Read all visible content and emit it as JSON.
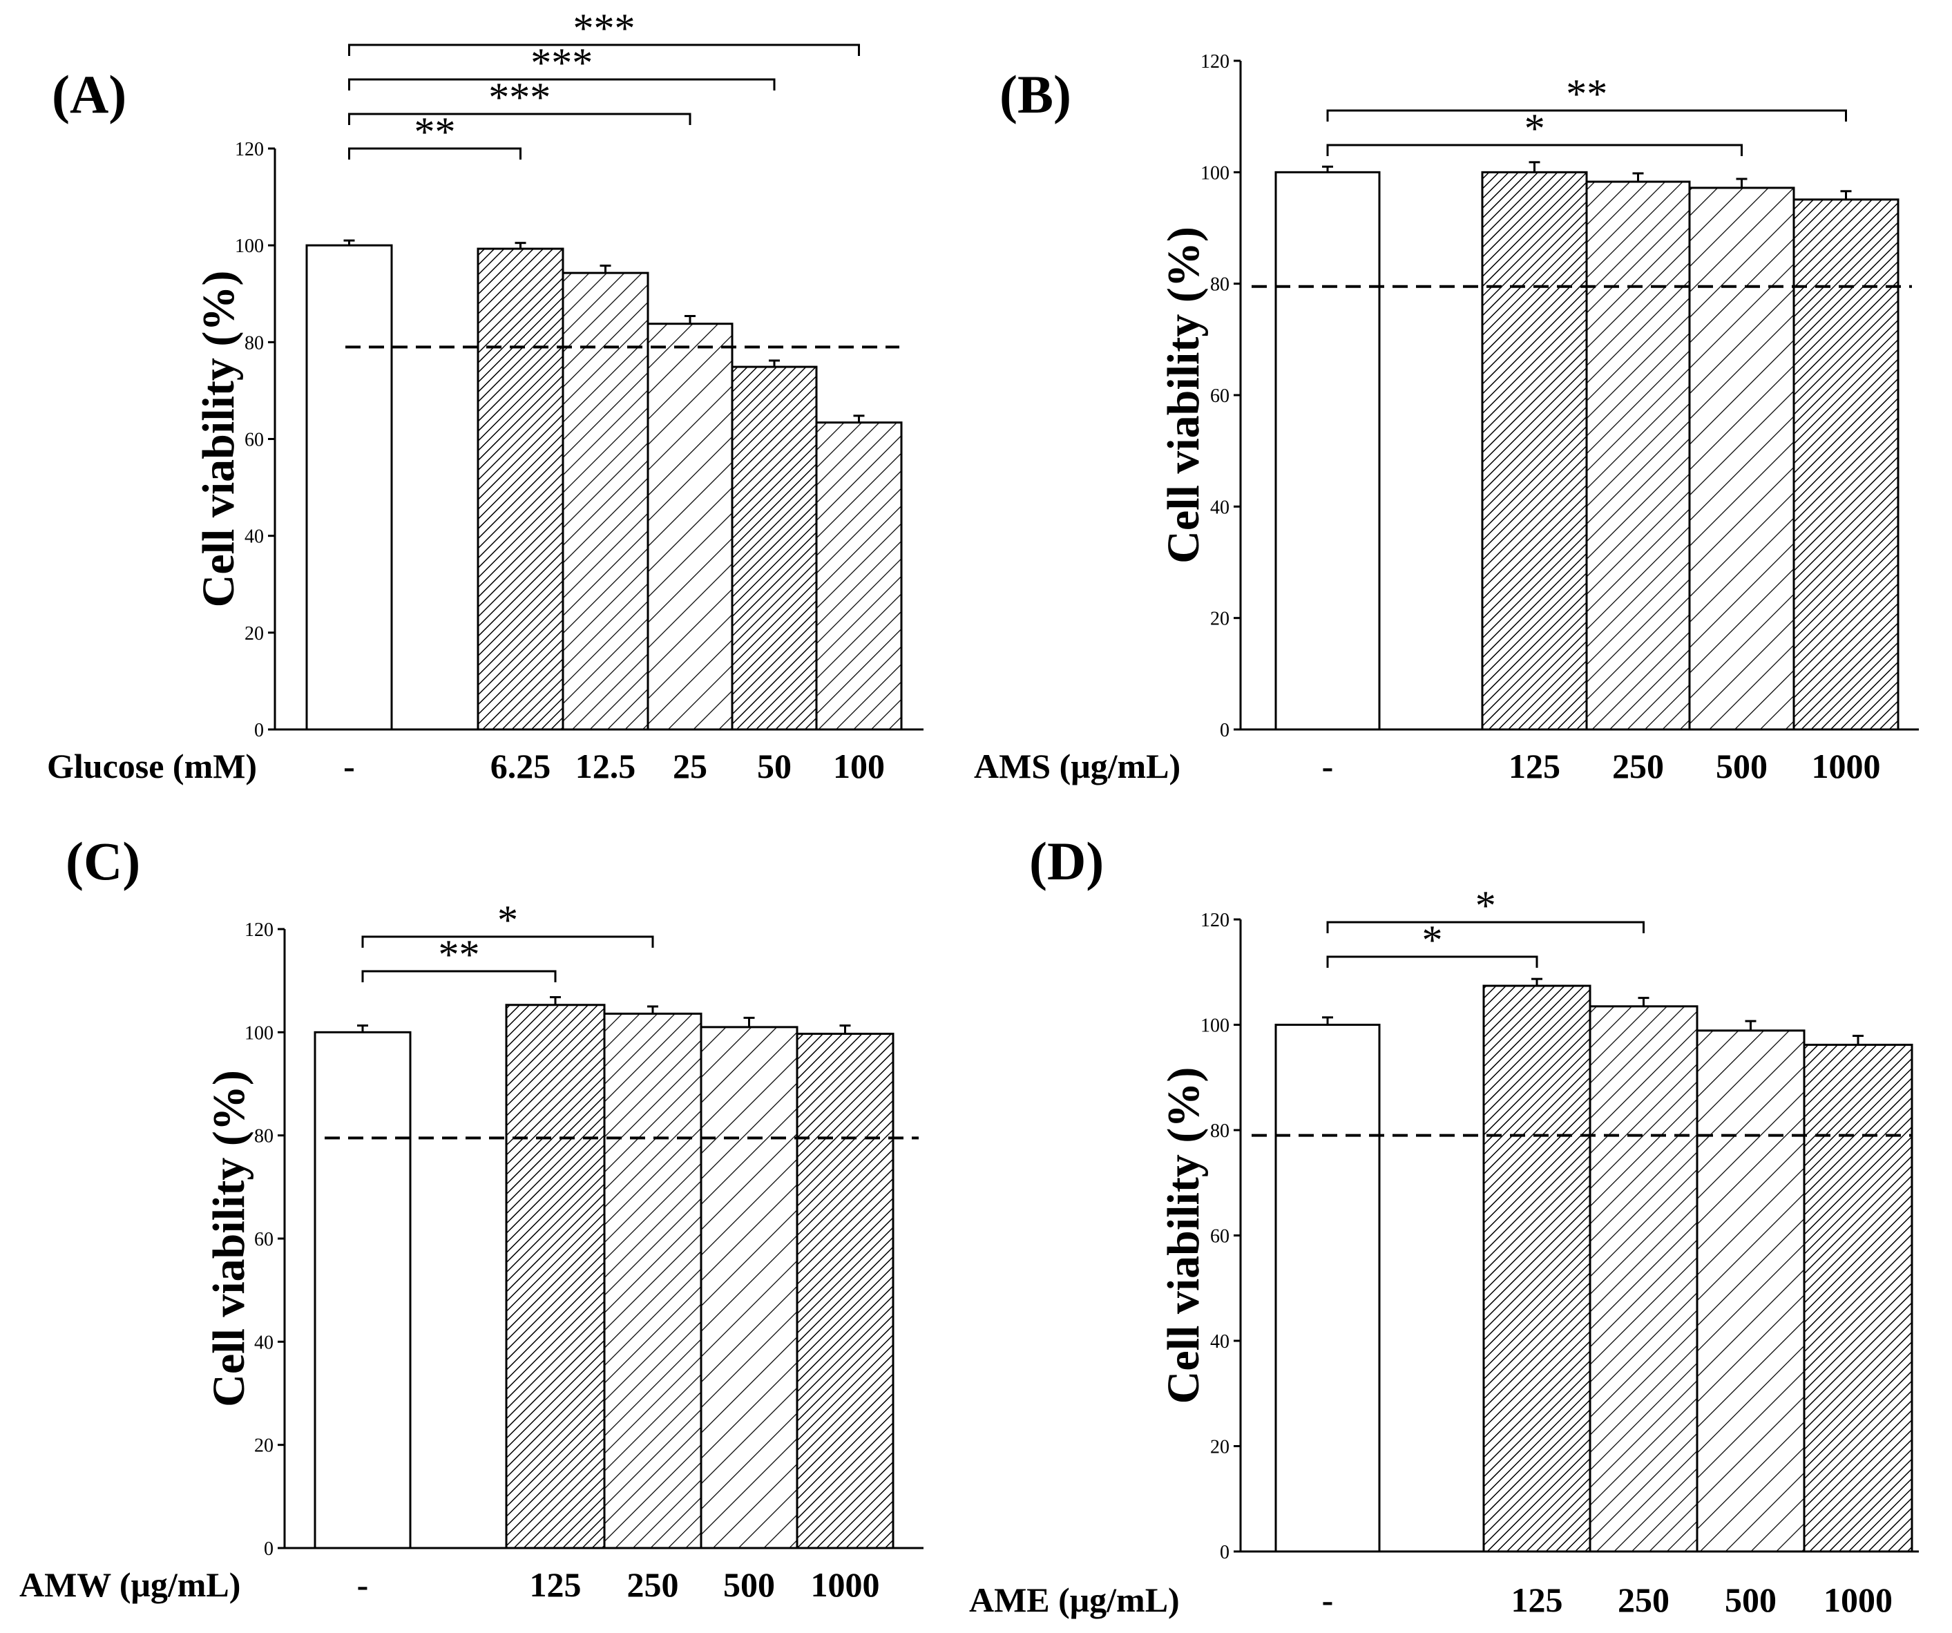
{
  "chart_data": [
    {
      "type": "bar",
      "panel": "(A)",
      "xlabel": "Glucose (mM)",
      "ylabel": "Cell viability (%)",
      "categories": [
        "-",
        "6.25",
        "12.5",
        "25",
        "50",
        "100"
      ],
      "values": [
        100,
        99.3,
        94.3,
        83.8,
        74.9,
        63.4
      ],
      "errors": [
        1.0,
        1.2,
        1.5,
        1.6,
        1.3,
        1.4
      ],
      "patterns": [
        "white",
        "dense",
        "medium",
        "wide",
        "dense",
        "medium"
      ],
      "ylim": [
        0,
        120
      ],
      "yticks": [
        "0",
        "20",
        "40",
        "60",
        "80",
        "100",
        "120"
      ],
      "reference_line": 79,
      "significance": [
        {
          "to": "6.25",
          "label": "**"
        },
        {
          "to": "25",
          "label": "***"
        },
        {
          "to": "50",
          "label": "***"
        },
        {
          "to": "100",
          "label": "***"
        }
      ]
    },
    {
      "type": "bar",
      "panel": "(B)",
      "xlabel": "AMS (μg/mL)",
      "ylabel": "Cell viability (%)",
      "categories": [
        "-",
        "125",
        "250",
        "500",
        "1000"
      ],
      "values": [
        100,
        100,
        98.3,
        97.2,
        95.1
      ],
      "errors": [
        1.0,
        1.8,
        1.5,
        1.6,
        1.5
      ],
      "patterns": [
        "white",
        "dense",
        "medium",
        "wide",
        "dense"
      ],
      "ylim": [
        0,
        120
      ],
      "yticks": [
        "0",
        "20",
        "40",
        "60",
        "80",
        "100",
        "120"
      ],
      "reference_line": 79.5,
      "significance": [
        {
          "to": "500",
          "label": "*"
        },
        {
          "to": "1000",
          "label": "**"
        }
      ]
    },
    {
      "type": "bar",
      "panel": "(C)",
      "xlabel": "AMW (μg/mL)",
      "ylabel": "Cell viability (%)",
      "categories": [
        "-",
        "125",
        "250",
        "500",
        "1000"
      ],
      "values": [
        100,
        105.3,
        103.6,
        101.0,
        99.7
      ],
      "errors": [
        1.3,
        1.5,
        1.4,
        1.8,
        1.6
      ],
      "patterns": [
        "white",
        "dense",
        "medium",
        "wide",
        "dense"
      ],
      "ylim": [
        0,
        120
      ],
      "yticks": [
        "0",
        "20",
        "40",
        "60",
        "80",
        "100",
        "120"
      ],
      "reference_line": 79.5,
      "significance": [
        {
          "to": "125",
          "label": "**"
        },
        {
          "to": "250",
          "label": "*"
        }
      ]
    },
    {
      "type": "bar",
      "panel": "(D)",
      "xlabel": "AME (μg/mL)",
      "ylabel": "Cell viability (%)",
      "categories": [
        "-",
        "125",
        "250",
        "500",
        "1000"
      ],
      "values": [
        100,
        107.4,
        103.5,
        98.9,
        96.2
      ],
      "errors": [
        1.4,
        1.3,
        1.6,
        1.8,
        1.7
      ],
      "patterns": [
        "white",
        "dense",
        "medium",
        "wide",
        "dense"
      ],
      "ylim": [
        0,
        120
      ],
      "yticks": [
        "0",
        "20",
        "40",
        "60",
        "80",
        "100",
        "120"
      ],
      "reference_line": 79,
      "significance": [
        {
          "to": "125",
          "label": "*"
        },
        {
          "to": "250",
          "label": "*"
        }
      ]
    }
  ]
}
